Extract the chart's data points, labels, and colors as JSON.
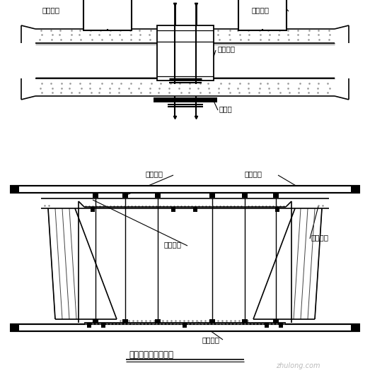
{
  "title": "中跨合拢吊架示意图",
  "bg_color": "#ffffff",
  "line_color": "#000000",
  "labels": {
    "peizhong_left": "配重水箱",
    "peizhong_right": "配重水箱",
    "jingxing": "劲性骨架",
    "chengzhong": "承重梁",
    "xuandiao": "悬吊系统",
    "chengzhong2": "承重横梁",
    "neimo": "内模系统",
    "waimo": "外模系统",
    "dimo": "底模系统"
  },
  "watermark": "zhulong.com"
}
